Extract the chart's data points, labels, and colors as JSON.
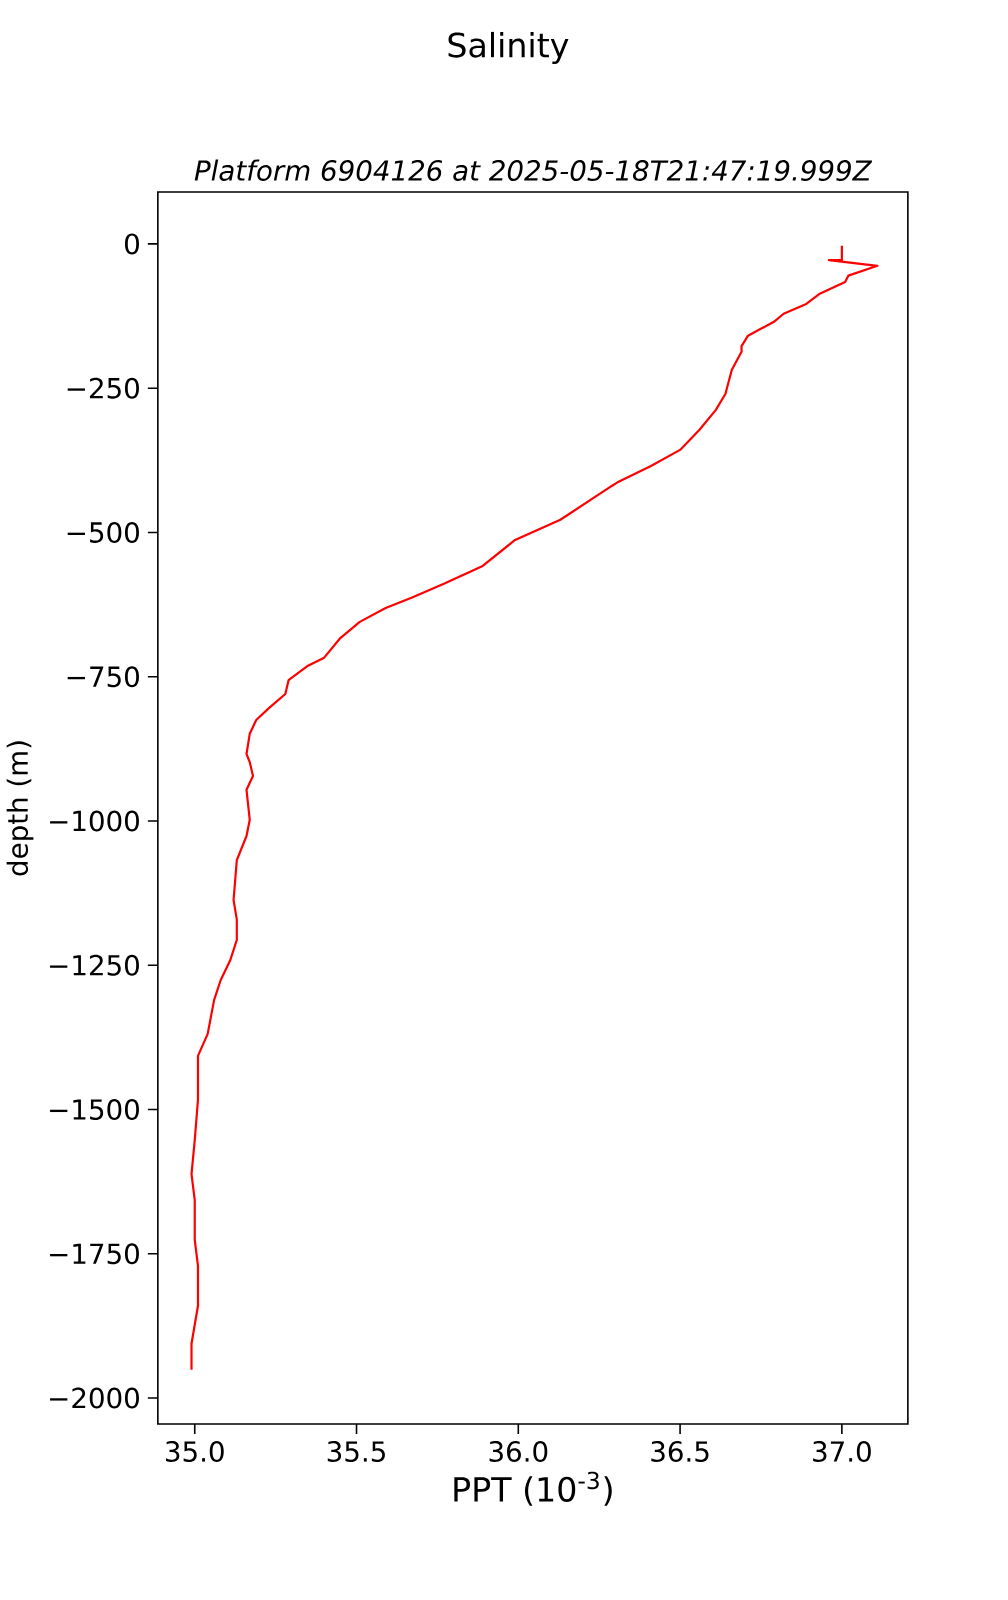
{
  "chart_data": {
    "type": "line",
    "title": "Salinity",
    "subtitle": "Platform 6904126 at 2025-05-18T21:47:19.999Z",
    "xlabel": "PPT (10$^{-3}$)",
    "ylabel": "depth (m)",
    "xlim": [
      34.886,
      37.204
    ],
    "ylim": [
      -2045,
      90
    ],
    "xticks": [
      {
        "value": 35.0,
        "label": "35.0"
      },
      {
        "value": 35.5,
        "label": "35.5"
      },
      {
        "value": 36.0,
        "label": "36.0"
      },
      {
        "value": 36.5,
        "label": "36.5"
      },
      {
        "value": 37.0,
        "label": "37.0"
      }
    ],
    "yticks": [
      {
        "value": 0,
        "label": "0"
      },
      {
        "value": -250,
        "label": "−250"
      },
      {
        "value": -500,
        "label": "−500"
      },
      {
        "value": -750,
        "label": "−750"
      },
      {
        "value": -1000,
        "label": "−1000"
      },
      {
        "value": -1250,
        "label": "−1250"
      },
      {
        "value": -1500,
        "label": "−1500"
      },
      {
        "value": -1750,
        "label": "−1750"
      },
      {
        "value": -2000,
        "label": "−2000"
      }
    ],
    "grid": false,
    "series": [
      {
        "color": "#ff0000",
        "line_style": "solid",
        "x": [
          37.0,
          37.0,
          36.96,
          37.11,
          37.02,
          37.01,
          36.93,
          36.89,
          36.82,
          36.79,
          36.71,
          36.69,
          36.69,
          36.66,
          36.64,
          36.61,
          36.56,
          36.5,
          36.41,
          36.31,
          36.29,
          36.13,
          35.99,
          35.89,
          35.77,
          35.67,
          35.59,
          35.51,
          35.45,
          35.4,
          35.35,
          35.29,
          35.28,
          35.23,
          35.19,
          35.17,
          35.16,
          35.17,
          35.18,
          35.16,
          35.17,
          35.16,
          35.13,
          35.12,
          35.13,
          35.13,
          35.11,
          35.08,
          35.06,
          35.04,
          35.01,
          35.01,
          35.0,
          34.99,
          35.0,
          35.0,
          35.01,
          35.01,
          34.99,
          34.99
        ],
        "values": [
          -3,
          -28,
          -28,
          -38,
          -55,
          -66,
          -87,
          -104,
          -121,
          -135,
          -159,
          -177,
          -187,
          -218,
          -260,
          -288,
          -322,
          -357,
          -385,
          -412,
          -419,
          -478,
          -513,
          -558,
          -589,
          -613,
          -631,
          -655,
          -683,
          -717,
          -731,
          -756,
          -780,
          -804,
          -825,
          -849,
          -884,
          -898,
          -922,
          -946,
          -998,
          -1026,
          -1068,
          -1137,
          -1171,
          -1206,
          -1241,
          -1276,
          -1310,
          -1369,
          -1407,
          -1483,
          -1553,
          -1612,
          -1657,
          -1726,
          -1771,
          -1840,
          -1906,
          -1951
        ]
      }
    ]
  }
}
